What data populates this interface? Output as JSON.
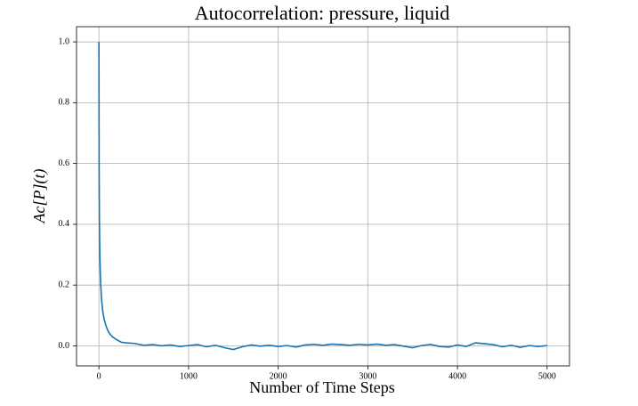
{
  "chart_data": {
    "type": "line",
    "title": "Autocorrelation: pressure, liquid",
    "x_label": "Number of Time Steps",
    "y_label": "Ac[P](t)",
    "x": [
      0,
      2,
      5,
      10,
      15,
      20,
      30,
      40,
      50,
      60,
      80,
      100,
      120,
      150,
      200,
      250,
      300,
      400,
      500,
      600,
      700,
      800,
      900,
      1000,
      1100,
      1200,
      1300,
      1400,
      1500,
      1600,
      1700,
      1800,
      1900,
      2000,
      2100,
      2200,
      2300,
      2400,
      2500,
      2600,
      2700,
      2800,
      2900,
      3000,
      3100,
      3200,
      3300,
      3400,
      3500,
      3600,
      3700,
      3800,
      3900,
      4000,
      4100,
      4200,
      4300,
      4400,
      4500,
      4600,
      4700,
      4800,
      4900,
      5000
    ],
    "values": [
      1.0,
      0.6,
      0.42,
      0.3,
      0.24,
      0.2,
      0.15,
      0.12,
      0.1,
      0.085,
      0.065,
      0.05,
      0.04,
      0.03,
      0.02,
      0.012,
      0.01,
      0.008,
      0.002,
      0.004,
      0.0,
      0.003,
      -0.002,
      0.001,
      0.004,
      -0.003,
      0.002,
      -0.006,
      -0.012,
      -0.003,
      0.003,
      -0.001,
      0.002,
      -0.002,
      0.001,
      -0.004,
      0.003,
      0.005,
      0.002,
      0.006,
      0.004,
      0.002,
      0.005,
      0.003,
      0.006,
      0.002,
      0.004,
      -0.001,
      -0.006,
      0.001,
      0.005,
      -0.002,
      -0.004,
      0.003,
      -0.002,
      0.01,
      0.007,
      0.004,
      -0.003,
      0.002,
      -0.005,
      0.001,
      -0.002,
      0.001
    ],
    "color": "#1673b3",
    "xlim": [
      -250,
      5250
    ],
    "ylim": [
      -0.066,
      1.05
    ],
    "xticks": [
      0,
      1000,
      2000,
      3000,
      4000,
      5000
    ],
    "yticks": [
      {
        "value": 0.0,
        "label": "0.0"
      },
      {
        "value": 0.2,
        "label": "0.2"
      },
      {
        "value": 0.4,
        "label": "0.4"
      },
      {
        "value": 0.6,
        "label": "0.6"
      },
      {
        "value": 0.8,
        "label": "0.8"
      },
      {
        "value": 1.0,
        "label": "1.0"
      }
    ],
    "grid": true
  }
}
